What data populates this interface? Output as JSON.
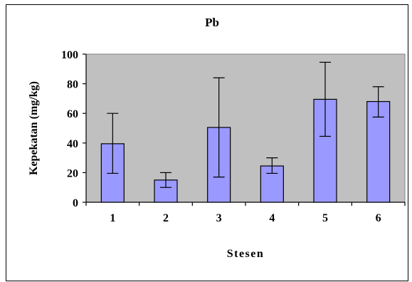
{
  "colors": {
    "plot_bg": "#c0c0c0",
    "bar_fill": "#9999ff",
    "bar_stroke": "#000000"
  },
  "chart_data": {
    "type": "bar",
    "title": "Pb",
    "xlabel": "Stesen",
    "ylabel": "Kepekatan (mg/kg)",
    "categories": [
      "1",
      "2",
      "3",
      "4",
      "5",
      "6"
    ],
    "values": [
      39.5,
      15,
      50.5,
      24.5,
      69.5,
      68
    ],
    "error_low": [
      19.5,
      10,
      17,
      19.5,
      44.5,
      57.5
    ],
    "error_high": [
      60,
      20,
      84,
      30,
      94.5,
      78
    ],
    "ylim": [
      0,
      100
    ],
    "yticks": [
      "0",
      "20",
      "40",
      "60",
      "80",
      "100"
    ],
    "grid": false,
    "legend": "none"
  }
}
